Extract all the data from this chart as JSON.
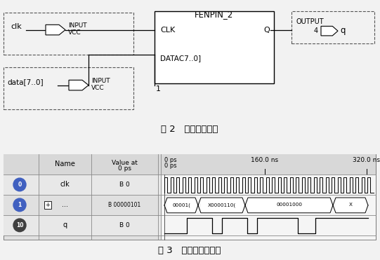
{
  "fig_width": 5.41,
  "fig_height": 3.71,
  "dpi": 100,
  "bg_color": "#f2f2f2",
  "title1": "图 2   分频器原理图",
  "title2": "图 3   分频器仿真波形",
  "sch": {
    "clk_label": "clk",
    "data_label": "data[7..0]",
    "input_label": "INPUT",
    "vcc_label": "VCC",
    "block_label": "FENPIN_2",
    "clk_port": "CLK",
    "q_port": "Q",
    "data_port": "DATAC7..0]",
    "output_label": "OUTPUT",
    "output_num": "4",
    "q_out": "q",
    "num1": "1"
  },
  "wf": {
    "row0_id": "0",
    "row0_name": "clk",
    "row0_val": "B 0",
    "row1_id": "1",
    "row1_name": "...",
    "row1_val": "B 00000101",
    "row2_id": "10",
    "row2_name": "q",
    "row2_val": "B 0"
  }
}
